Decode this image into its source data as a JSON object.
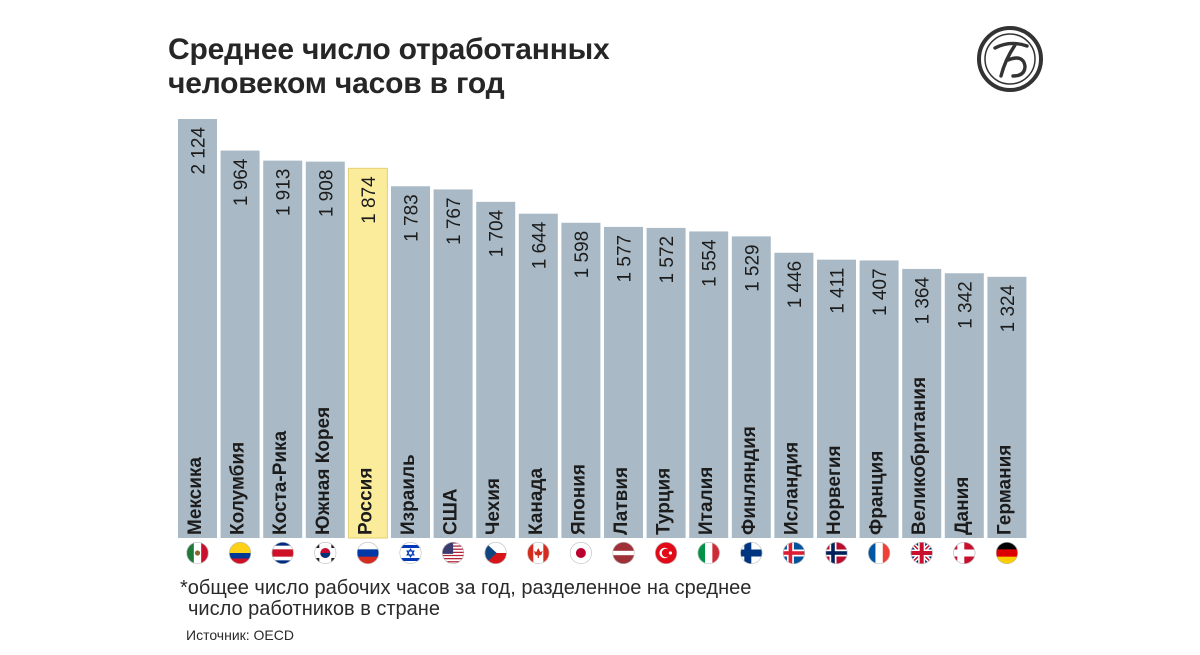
{
  "header": {
    "title_line1": "Среднее число отработанных",
    "title_line2": "человеком часов в год"
  },
  "logo": {
    "icon": "monogram-logo-icon"
  },
  "colors": {
    "bar": "#a9bac6",
    "highlight_bar": "#fbec9c",
    "highlight_bar_border": "#e6cf72"
  },
  "chart_data": {
    "type": "bar",
    "orientation": "vertical",
    "title": "Среднее число отработанных человеком часов в год",
    "xlabel": "",
    "ylabel": "",
    "ylim": [
      0,
      2124
    ],
    "grid": false,
    "legend": "none",
    "highlight": "Россия",
    "categories": [
      "Мексика",
      "Колумбия",
      "Коста-Рика",
      "Южная Корея",
      "Россия",
      "Израиль",
      "США",
      "Чехия",
      "Канада",
      "Япония",
      "Латвия",
      "Турция",
      "Италия",
      "Финляндия",
      "Исландия",
      "Норвегия",
      "Франция",
      "Великобритания",
      "Дания",
      "Германия"
    ],
    "values": [
      2124,
      1964,
      1913,
      1908,
      1874,
      1783,
      1767,
      1704,
      1644,
      1598,
      1577,
      1572,
      1554,
      1529,
      1446,
      1411,
      1407,
      1364,
      1342,
      1324
    ],
    "value_labels": [
      "2 124",
      "1 964",
      "1 913",
      "1 908",
      "1 874",
      "1 783",
      "1 767",
      "1 704",
      "1 644",
      "1 598",
      "1 577",
      "1 572",
      "1 554",
      "1 529",
      "1 446",
      "1 411",
      "1 407",
      "1 364",
      "1 342",
      "1 324"
    ],
    "flags": [
      "mexico-flag-icon",
      "colombia-flag-icon",
      "costa-rica-flag-icon",
      "south-korea-flag-icon",
      "russia-flag-icon",
      "israel-flag-icon",
      "usa-flag-icon",
      "czechia-flag-icon",
      "canada-flag-icon",
      "japan-flag-icon",
      "latvia-flag-icon",
      "turkey-flag-icon",
      "italy-flag-icon",
      "finland-flag-icon",
      "iceland-flag-icon",
      "norway-flag-icon",
      "france-flag-icon",
      "uk-flag-icon",
      "denmark-flag-icon",
      "germany-flag-icon"
    ]
  },
  "footnote": {
    "line1": "*общее число рабочих часов за год, разделенное на среднее",
    "line2": "число работников в стране"
  },
  "source": "Источник: OECD"
}
